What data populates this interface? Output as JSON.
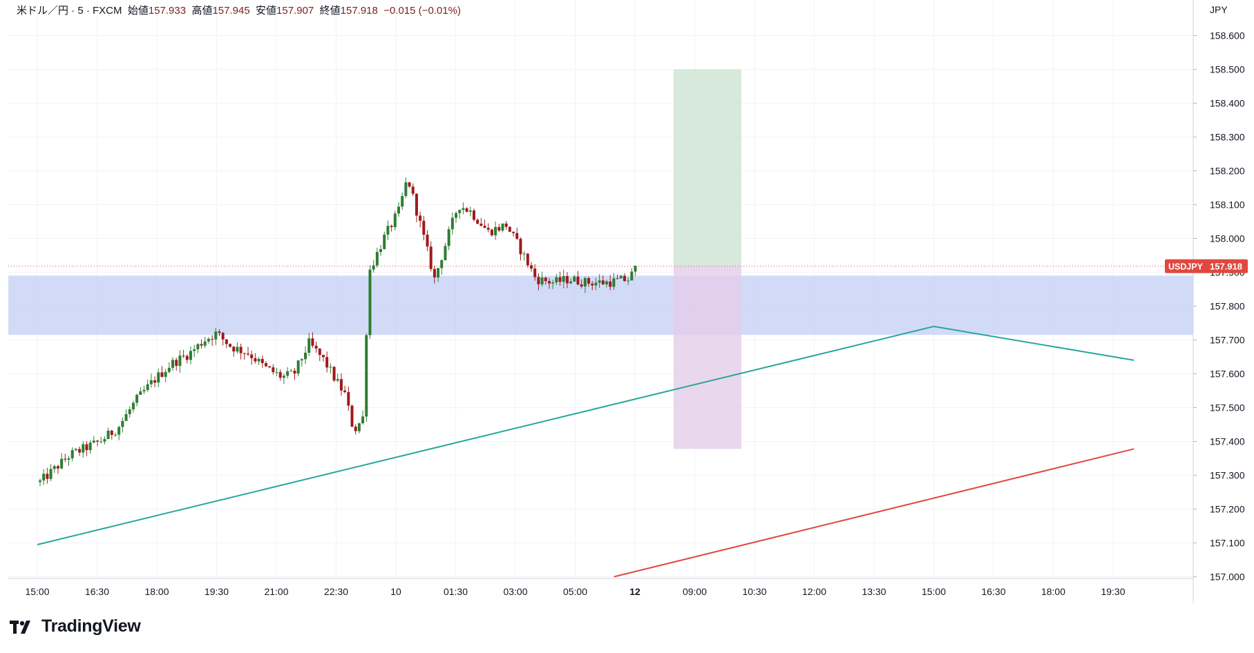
{
  "header": {
    "symbol": "米ドル／円 · 5 · FXCM",
    "open_label": "始値",
    "open_value": "157.933",
    "high_label": "高値",
    "high_value": "157.945",
    "low_label": "安値",
    "low_value": "157.907",
    "close_label": "終値",
    "close_value": "157.918",
    "change": "−0.015 (−0.01%)"
  },
  "currency_label": "JPY",
  "price_tag": {
    "symbol": "USDJPY",
    "value": "157.918",
    "price": 157.918,
    "color": "#e0483f"
  },
  "brand": "TradingView",
  "chart_data": {
    "type": "candlestick",
    "y_range": [
      156.995,
      158.705
    ],
    "y_ticks": [
      "158.600",
      "158.500",
      "158.400",
      "158.300",
      "158.200",
      "158.100",
      "158.000",
      "157.900",
      "157.800",
      "157.700",
      "157.600",
      "157.500",
      "157.400",
      "157.300",
      "157.200",
      "157.100",
      "157.000"
    ],
    "x_tick_labels": [
      "15:00",
      "16:30",
      "18:00",
      "19:30",
      "21:00",
      "22:30",
      "10",
      "01:30",
      "03:00",
      "05:00",
      "12",
      "09:00",
      "10:30",
      "12:00",
      "13:30",
      "15:00",
      "16:30",
      "18:00",
      "19:30"
    ],
    "x_tick_bold": [
      false,
      false,
      false,
      false,
      false,
      false,
      false,
      false,
      false,
      false,
      true,
      false,
      false,
      false,
      false,
      false,
      false,
      false,
      false
    ],
    "grid": true,
    "colors": {
      "up": "#26a69a",
      "down": "#ef5350",
      "candle_up": "#2e7d32",
      "candle_down": "#9e1b1b",
      "trend_green": "#26a69a",
      "trend_red": "#e0483f",
      "zone": "#b8c7f2",
      "target": "#cfe5d3",
      "stop": "#e4cdea"
    },
    "zone": {
      "from": 157.715,
      "to": 157.89
    },
    "position": {
      "entry": 157.918,
      "target": 158.5,
      "stop": 157.378
    },
    "trendlines": [
      {
        "color": "green",
        "points": [
          [
            0,
            157.095
          ],
          [
            15.0,
            157.74
          ],
          [
            18.35,
            157.64
          ]
        ]
      },
      {
        "color": "red",
        "points": [
          [
            9.65,
            157.0
          ],
          [
            18.35,
            157.378
          ]
        ]
      }
    ],
    "candle_anchors": [
      [
        0.0,
        157.28
      ],
      [
        0.25,
        157.32
      ],
      [
        0.5,
        157.36
      ],
      [
        0.75,
        157.38
      ],
      [
        1.0,
        157.4
      ],
      [
        1.3,
        157.44
      ],
      [
        1.6,
        157.52
      ],
      [
        1.9,
        157.58
      ],
      [
        2.2,
        157.63
      ],
      [
        2.5,
        157.66
      ],
      [
        2.75,
        157.7
      ],
      [
        2.95,
        157.72
      ],
      [
        3.2,
        157.68
      ],
      [
        3.5,
        157.66
      ],
      [
        3.75,
        157.62
      ],
      [
        4.05,
        157.59
      ],
      [
        4.25,
        157.6
      ],
      [
        4.5,
        157.69
      ],
      [
        4.75,
        157.64
      ],
      [
        4.95,
        157.58
      ],
      [
        5.1,
        157.54
      ],
      [
        5.25,
        157.43
      ],
      [
        5.4,
        157.47
      ],
      [
        5.5,
        157.9
      ],
      [
        5.75,
        158.0
      ],
      [
        6.0,
        158.08
      ],
      [
        6.15,
        158.18
      ],
      [
        6.35,
        158.05
      ],
      [
        6.6,
        157.88
      ],
      [
        6.85,
        158.02
      ],
      [
        7.0,
        158.1
      ],
      [
        7.2,
        158.08
      ],
      [
        7.5,
        158.02
      ],
      [
        7.8,
        158.04
      ],
      [
        8.0,
        157.98
      ],
      [
        8.3,
        157.88
      ],
      [
        8.6,
        157.87
      ],
      [
        8.85,
        157.88
      ],
      [
        9.15,
        157.87
      ],
      [
        9.5,
        157.87
      ],
      [
        9.85,
        157.88
      ],
      [
        10.0,
        157.92
      ]
    ]
  }
}
